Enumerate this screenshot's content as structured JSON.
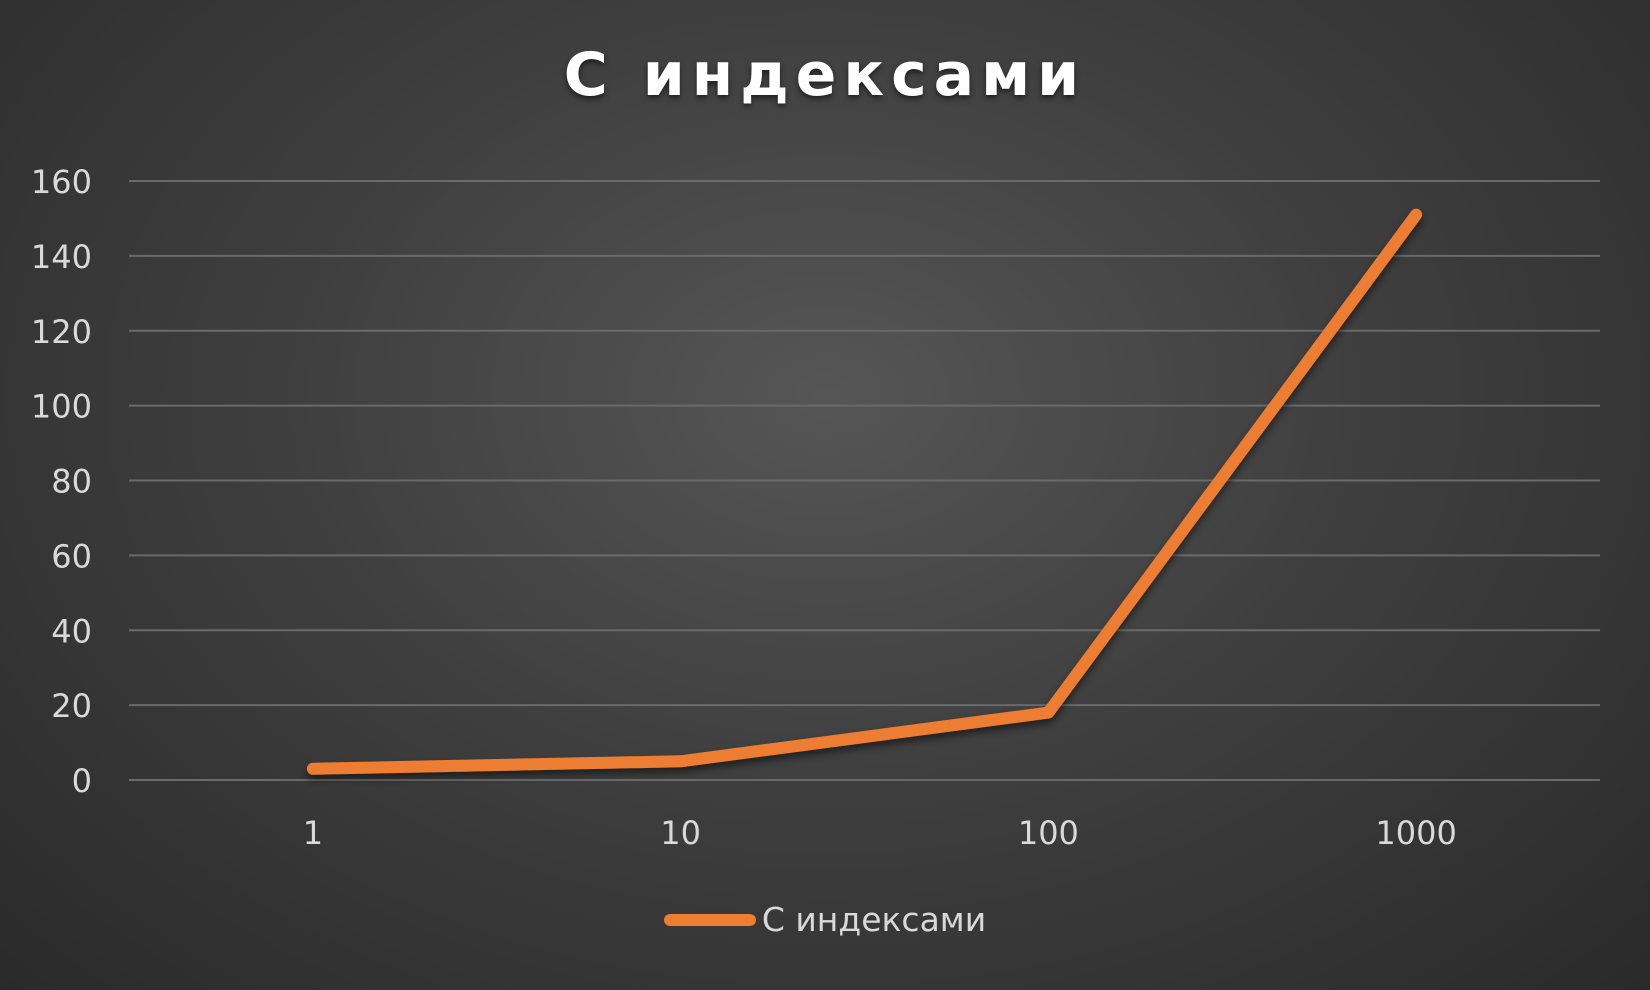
{
  "chart_data": {
    "type": "line",
    "title": "С индексами",
    "xlabel": "",
    "ylabel": "",
    "categories": [
      "1",
      "10",
      "100",
      "1000"
    ],
    "series": [
      {
        "name": "С индексами",
        "values": [
          3,
          5,
          18,
          151
        ],
        "color": "#ed7d31"
      }
    ],
    "ylim": [
      0,
      160
    ],
    "yticks": [
      0,
      20,
      40,
      60,
      80,
      100,
      120,
      140,
      160
    ],
    "grid": true,
    "legend": "bottom"
  }
}
